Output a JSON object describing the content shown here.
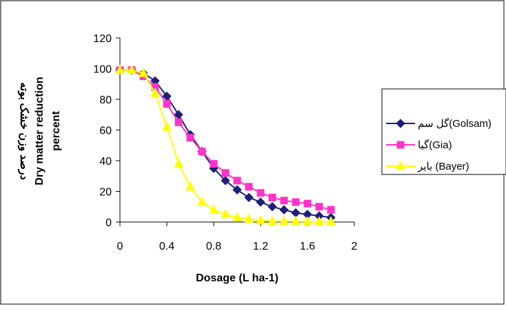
{
  "chart_data": {
    "type": "line",
    "xlabel": "Dosage (L ha-1)",
    "ylabel_lines": [
      "درصد وزن خشک بوته",
      "Dry matter reduction",
      "percent"
    ],
    "xlim": [
      0,
      2
    ],
    "ylim": [
      0,
      120
    ],
    "xticks": [
      "0",
      "0.4",
      "0.8",
      "1.2",
      "1.6",
      "2"
    ],
    "yticks": [
      "0",
      "20",
      "40",
      "60",
      "80",
      "100",
      "120"
    ],
    "grid": false,
    "legend_position": "right",
    "series": [
      {
        "name": "گل سم(Golsam)",
        "color": "#1f1f7a",
        "marker": "diamond",
        "x": [
          0,
          0.1,
          0.2,
          0.3,
          0.4,
          0.5,
          0.6,
          0.7,
          0.8,
          0.9,
          1.0,
          1.1,
          1.2,
          1.3,
          1.4,
          1.5,
          1.6,
          1.7,
          1.8
        ],
        "y": [
          99,
          99,
          97,
          92,
          82,
          70,
          57,
          46,
          35,
          27,
          21,
          16,
          13,
          10,
          8,
          6,
          5,
          4,
          3
        ]
      },
      {
        "name": "گیا(Gia)",
        "color": "#ff33cc",
        "marker": "square",
        "x": [
          0,
          0.1,
          0.2,
          0.3,
          0.4,
          0.5,
          0.6,
          0.7,
          0.8,
          0.9,
          1.0,
          1.1,
          1.2,
          1.3,
          1.4,
          1.5,
          1.6,
          1.7,
          1.8
        ],
        "y": [
          99,
          99,
          95,
          88,
          77,
          65,
          55,
          46,
          38,
          32,
          27,
          23,
          19,
          16,
          14,
          13,
          12,
          10,
          8
        ]
      },
      {
        "name": "بایر (Bayer)",
        "color": "#ffff00",
        "marker": "triangle",
        "x": [
          0,
          0.1,
          0.2,
          0.3,
          0.4,
          0.5,
          0.6,
          0.7,
          0.8,
          0.9,
          1.0,
          1.1,
          1.2,
          1.3,
          1.4,
          1.5,
          1.6,
          1.7,
          1.8
        ],
        "y": [
          99,
          99,
          97,
          84,
          62,
          38,
          23,
          13,
          8,
          5,
          3,
          2,
          1,
          0.5,
          0.5,
          0.5,
          0.3,
          0.2,
          0.2
        ]
      }
    ]
  }
}
